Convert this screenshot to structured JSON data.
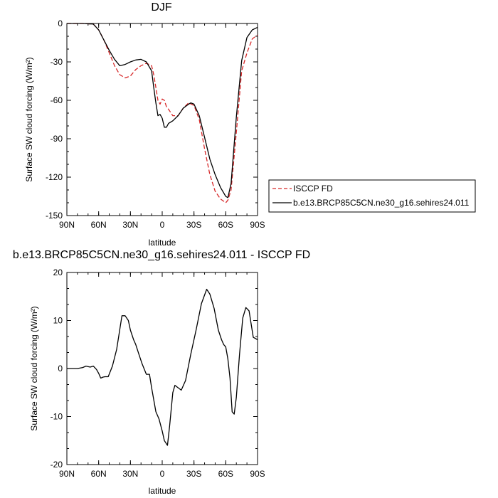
{
  "chart_data": [
    {
      "type": "line",
      "title": "DJF",
      "xlabel": "latitude",
      "ylabel": "Surface SW cloud forcing (W/m²)",
      "xlim": [
        90,
        -90
      ],
      "ylim": [
        -150,
        0
      ],
      "xticks": [
        90,
        60,
        30,
        0,
        -30,
        -60,
        -90
      ],
      "xtick_labels": [
        "90N",
        "60N",
        "30N",
        "0",
        "30S",
        "60S",
        "90S"
      ],
      "yticks": [
        0,
        -30,
        -60,
        -90,
        -120,
        -150
      ],
      "ytick_labels": [
        "0",
        "-30",
        "-60",
        "-90",
        "-120",
        "-150"
      ],
      "legend": "right",
      "series": [
        {
          "name": "ISCCP FD",
          "color": "#d62728",
          "style": "dashed",
          "x": [
            90,
            75,
            65,
            60,
            55,
            50,
            45,
            40,
            35,
            30,
            25,
            20,
            15,
            10,
            8,
            6,
            4,
            2,
            0,
            -2,
            -4,
            -6,
            -10,
            -15,
            -20,
            -25,
            -30,
            -35,
            -40,
            -45,
            -50,
            -55,
            -60,
            -62,
            -65,
            -70,
            -75,
            -80,
            -85,
            -90
          ],
          "y": [
            0,
            0,
            -0.5,
            -5,
            -13,
            -23,
            -33,
            -40,
            -42.5,
            -41,
            -36,
            -33,
            -31,
            -33,
            -40,
            -50,
            -60,
            -63,
            -59,
            -60,
            -65,
            -67,
            -72,
            -72,
            -66,
            -62,
            -64,
            -75,
            -98,
            -118,
            -131,
            -137,
            -140,
            -138,
            -130,
            -85,
            -37,
            -23,
            -12,
            -9
          ]
        },
        {
          "name": "b.e13.BRCP85C5CN.ne30_g16.sehires24.011",
          "color": "#000000",
          "style": "solid",
          "x": [
            90,
            75,
            65,
            60,
            55,
            50,
            45,
            40,
            35,
            30,
            25,
            20,
            15,
            10,
            8,
            6,
            4,
            2,
            0,
            -2,
            -4,
            -6,
            -10,
            -15,
            -20,
            -25,
            -27,
            -30,
            -35,
            -40,
            -45,
            -50,
            -55,
            -60,
            -62,
            -65,
            -70,
            -75,
            -80,
            -85,
            -90
          ],
          "y": [
            0,
            0,
            -0.5,
            -5,
            -13,
            -21,
            -28,
            -33,
            -32,
            -30,
            -28.5,
            -28,
            -30,
            -37,
            -50,
            -62,
            -72,
            -71,
            -74,
            -81,
            -81,
            -78,
            -76,
            -72,
            -66,
            -63,
            -62,
            -63,
            -72,
            -89,
            -106,
            -118,
            -128,
            -135,
            -136,
            -125,
            -73,
            -29,
            -11,
            -5,
            -3
          ]
        }
      ]
    },
    {
      "type": "line",
      "title": "b.e13.BRCP85C5CN.ne30_g16.sehires24.011 - ISCCP FD",
      "xlabel": "latitude",
      "ylabel": "Surface SW cloud forcing (W/m²)",
      "xlim": [
        90,
        -90
      ],
      "ylim": [
        -20,
        20
      ],
      "xticks": [
        90,
        60,
        30,
        0,
        -30,
        -60,
        -90
      ],
      "xtick_labels": [
        "90N",
        "60N",
        "30N",
        "0",
        "30S",
        "60S",
        "90S"
      ],
      "yticks": [
        20,
        10,
        0,
        -10,
        -20
      ],
      "ytick_labels": [
        "20",
        "10",
        "0",
        "-10",
        "-20"
      ],
      "series": [
        {
          "color": "#000000",
          "style": "solid",
          "x": [
            90,
            80,
            75,
            72,
            68,
            65,
            62,
            60,
            58,
            56,
            54,
            51,
            47,
            43,
            38,
            35,
            32,
            30,
            27,
            25,
            22,
            19,
            15,
            12,
            10,
            6,
            3,
            0,
            -2,
            -5,
            -7,
            -10,
            -12,
            -15,
            -18,
            -22,
            -27,
            -32,
            -37,
            -42,
            -45,
            -49,
            -53,
            -56,
            -58,
            -60,
            -62,
            -64,
            -66,
            -68,
            -70,
            -73,
            -76,
            -79,
            -82,
            -86,
            -90
          ],
          "y": [
            0,
            0,
            0.2,
            0.5,
            0.3,
            0.5,
            -0.2,
            -1,
            -2,
            -1.8,
            -1.7,
            -1.7,
            0.5,
            4,
            11,
            11,
            10,
            8,
            6,
            5,
            3,
            1,
            -1.2,
            -1.2,
            -4,
            -9,
            -10.5,
            -13,
            -15,
            -16,
            -12,
            -5,
            -3.5,
            -4,
            -4.5,
            -2.5,
            3,
            8,
            13.5,
            16.5,
            15.5,
            12.5,
            8,
            6,
            5,
            4.5,
            2,
            -2,
            -9,
            -9.5,
            -6,
            3,
            10.5,
            12.7,
            12,
            6.5,
            6
          ]
        }
      ]
    }
  ]
}
